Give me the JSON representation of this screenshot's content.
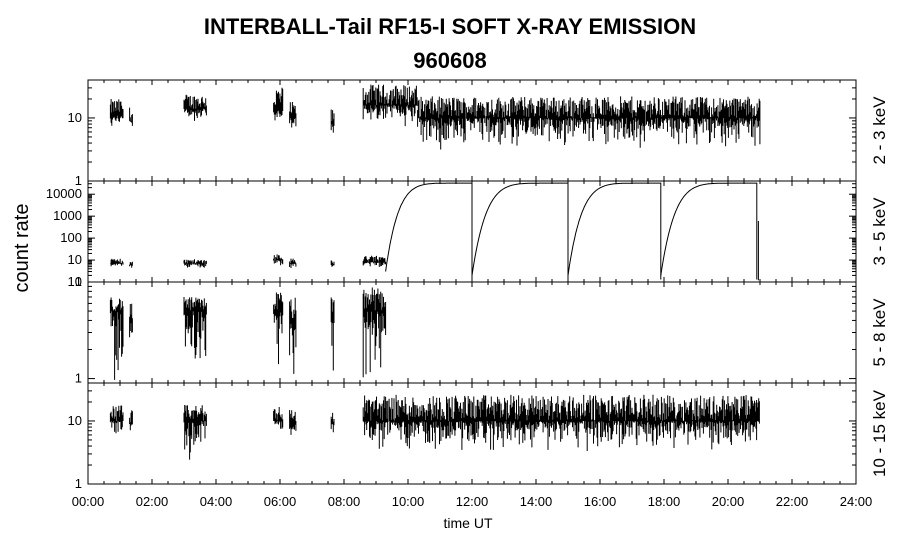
{
  "title": "INTERBALL-Tail RF15-I SOFT X-RAY EMISSION",
  "subtitle": "960608",
  "chart_data": {
    "type": "line",
    "xlabel": "time UT",
    "ylabel": "count rate",
    "xlim": [
      0,
      24
    ],
    "x_ticks": [
      "00:00",
      "02:00",
      "04:00",
      "06:00",
      "08:00",
      "10:00",
      "12:00",
      "14:00",
      "16:00",
      "18:00",
      "20:00",
      "22:00",
      "24:00"
    ],
    "y_scale": "log",
    "data_intervals_UT_hours": [
      [
        0.7,
        1.1
      ],
      [
        1.3,
        1.4
      ],
      [
        3.0,
        3.7
      ],
      [
        5.8,
        6.1
      ],
      [
        6.3,
        6.5
      ],
      [
        7.6,
        7.7
      ],
      [
        8.6,
        21.0
      ]
    ],
    "panels": [
      {
        "label": "2 - 3 keV",
        "ylim": [
          1,
          40
        ],
        "y_ticks": [
          "1",
          "10"
        ],
        "series": [
          {
            "segments": [
              {
                "x_start": 0.7,
                "x_end": 1.1,
                "level": 11,
                "min": 6,
                "max": 20
              },
              {
                "x_start": 1.3,
                "x_end": 1.4,
                "level": 9,
                "min": 6,
                "max": 15
              },
              {
                "x_start": 3.0,
                "x_end": 3.7,
                "level": 14,
                "min": 8,
                "max": 24
              },
              {
                "x_start": 5.8,
                "x_end": 6.1,
                "level": 13,
                "min": 7,
                "max": 32
              },
              {
                "x_start": 6.3,
                "x_end": 6.5,
                "level": 10,
                "min": 6,
                "max": 18
              },
              {
                "x_start": 7.6,
                "x_end": 7.7,
                "level": 8,
                "min": 5,
                "max": 14
              },
              {
                "x_start": 8.6,
                "x_end": 10.3,
                "level": 16,
                "min": 7,
                "max": 34
              },
              {
                "x_start": 10.3,
                "x_end": 21.0,
                "level": 10,
                "min": 3,
                "max": 22
              }
            ]
          }
        ]
      },
      {
        "label": "3 - 5 keV",
        "ylim": [
          1,
          40000
        ],
        "y_ticks": [
          "1",
          "10",
          "100",
          "1000",
          "10000"
        ],
        "series": [
          {
            "segments": [
              {
                "x_start": 0.7,
                "x_end": 1.1,
                "level": 7,
                "min": 4,
                "max": 12
              },
              {
                "x_start": 1.3,
                "x_end": 1.4,
                "level": 6,
                "min": 4,
                "max": 9
              },
              {
                "x_start": 3.0,
                "x_end": 3.7,
                "level": 7,
                "min": 4,
                "max": 11
              },
              {
                "x_start": 5.8,
                "x_end": 6.1,
                "level": 10,
                "min": 5,
                "max": 20
              },
              {
                "x_start": 6.3,
                "x_end": 6.5,
                "level": 7,
                "min": 4,
                "max": 12
              },
              {
                "x_start": 7.6,
                "x_end": 7.7,
                "level": 6,
                "min": 4,
                "max": 10
              },
              {
                "x_start": 8.6,
                "x_end": 9.3,
                "level": 8,
                "min": 4,
                "max": 16
              }
            ],
            "ramps": [
              {
                "x_start": 9.3,
                "x_end": 12.0,
                "y_start": 3,
                "y_end": 32000
              },
              {
                "x_start": 12.0,
                "x_end": 15.0,
                "y_start": 2,
                "y_end": 32000
              },
              {
                "x_start": 15.0,
                "x_end": 17.9,
                "y_start": 2,
                "y_end": 32000
              },
              {
                "x_start": 17.9,
                "x_end": 20.9,
                "y_start": 2,
                "y_end": 32000
              }
            ],
            "end_value": {
              "x": 20.95,
              "y": 600
            }
          }
        ]
      },
      {
        "label": "5 - 8 keV",
        "ylim": [
          0.9,
          10
        ],
        "y_ticks": [
          "1",
          "10"
        ],
        "series": [
          {
            "segments": [
              {
                "x_start": 0.7,
                "x_end": 1.1,
                "level": 5,
                "min": 0.9,
                "max": 7
              },
              {
                "x_start": 1.3,
                "x_end": 1.4,
                "level": 4,
                "min": 0.9,
                "max": 6
              },
              {
                "x_start": 3.0,
                "x_end": 3.7,
                "level": 5,
                "min": 0.9,
                "max": 7
              },
              {
                "x_start": 5.8,
                "x_end": 6.1,
                "level": 5,
                "min": 0.9,
                "max": 8
              },
              {
                "x_start": 6.3,
                "x_end": 6.5,
                "level": 4,
                "min": 0.9,
                "max": 7
              },
              {
                "x_start": 7.6,
                "x_end": 7.7,
                "level": 4,
                "min": 0.9,
                "max": 7
              },
              {
                "x_start": 8.6,
                "x_end": 9.3,
                "level": 5,
                "min": 0.9,
                "max": 9
              }
            ]
          }
        ]
      },
      {
        "label": "10 - 15 keV",
        "ylim": [
          1,
          40
        ],
        "y_ticks": [
          "1",
          "10"
        ],
        "series": [
          {
            "segments": [
              {
                "x_start": 0.7,
                "x_end": 1.1,
                "level": 10,
                "min": 6,
                "max": 18
              },
              {
                "x_start": 1.3,
                "x_end": 1.4,
                "level": 9,
                "min": 6,
                "max": 15
              },
              {
                "x_start": 3.0,
                "x_end": 3.7,
                "level": 10,
                "min": 2,
                "max": 18
              },
              {
                "x_start": 5.8,
                "x_end": 6.1,
                "level": 10,
                "min": 6,
                "max": 18
              },
              {
                "x_start": 6.3,
                "x_end": 6.5,
                "level": 9,
                "min": 5,
                "max": 16
              },
              {
                "x_start": 7.6,
                "x_end": 7.7,
                "level": 9,
                "min": 6,
                "max": 15
              },
              {
                "x_start": 8.6,
                "x_end": 21.0,
                "level": 10,
                "min": 3,
                "max": 26
              }
            ]
          }
        ]
      }
    ]
  }
}
